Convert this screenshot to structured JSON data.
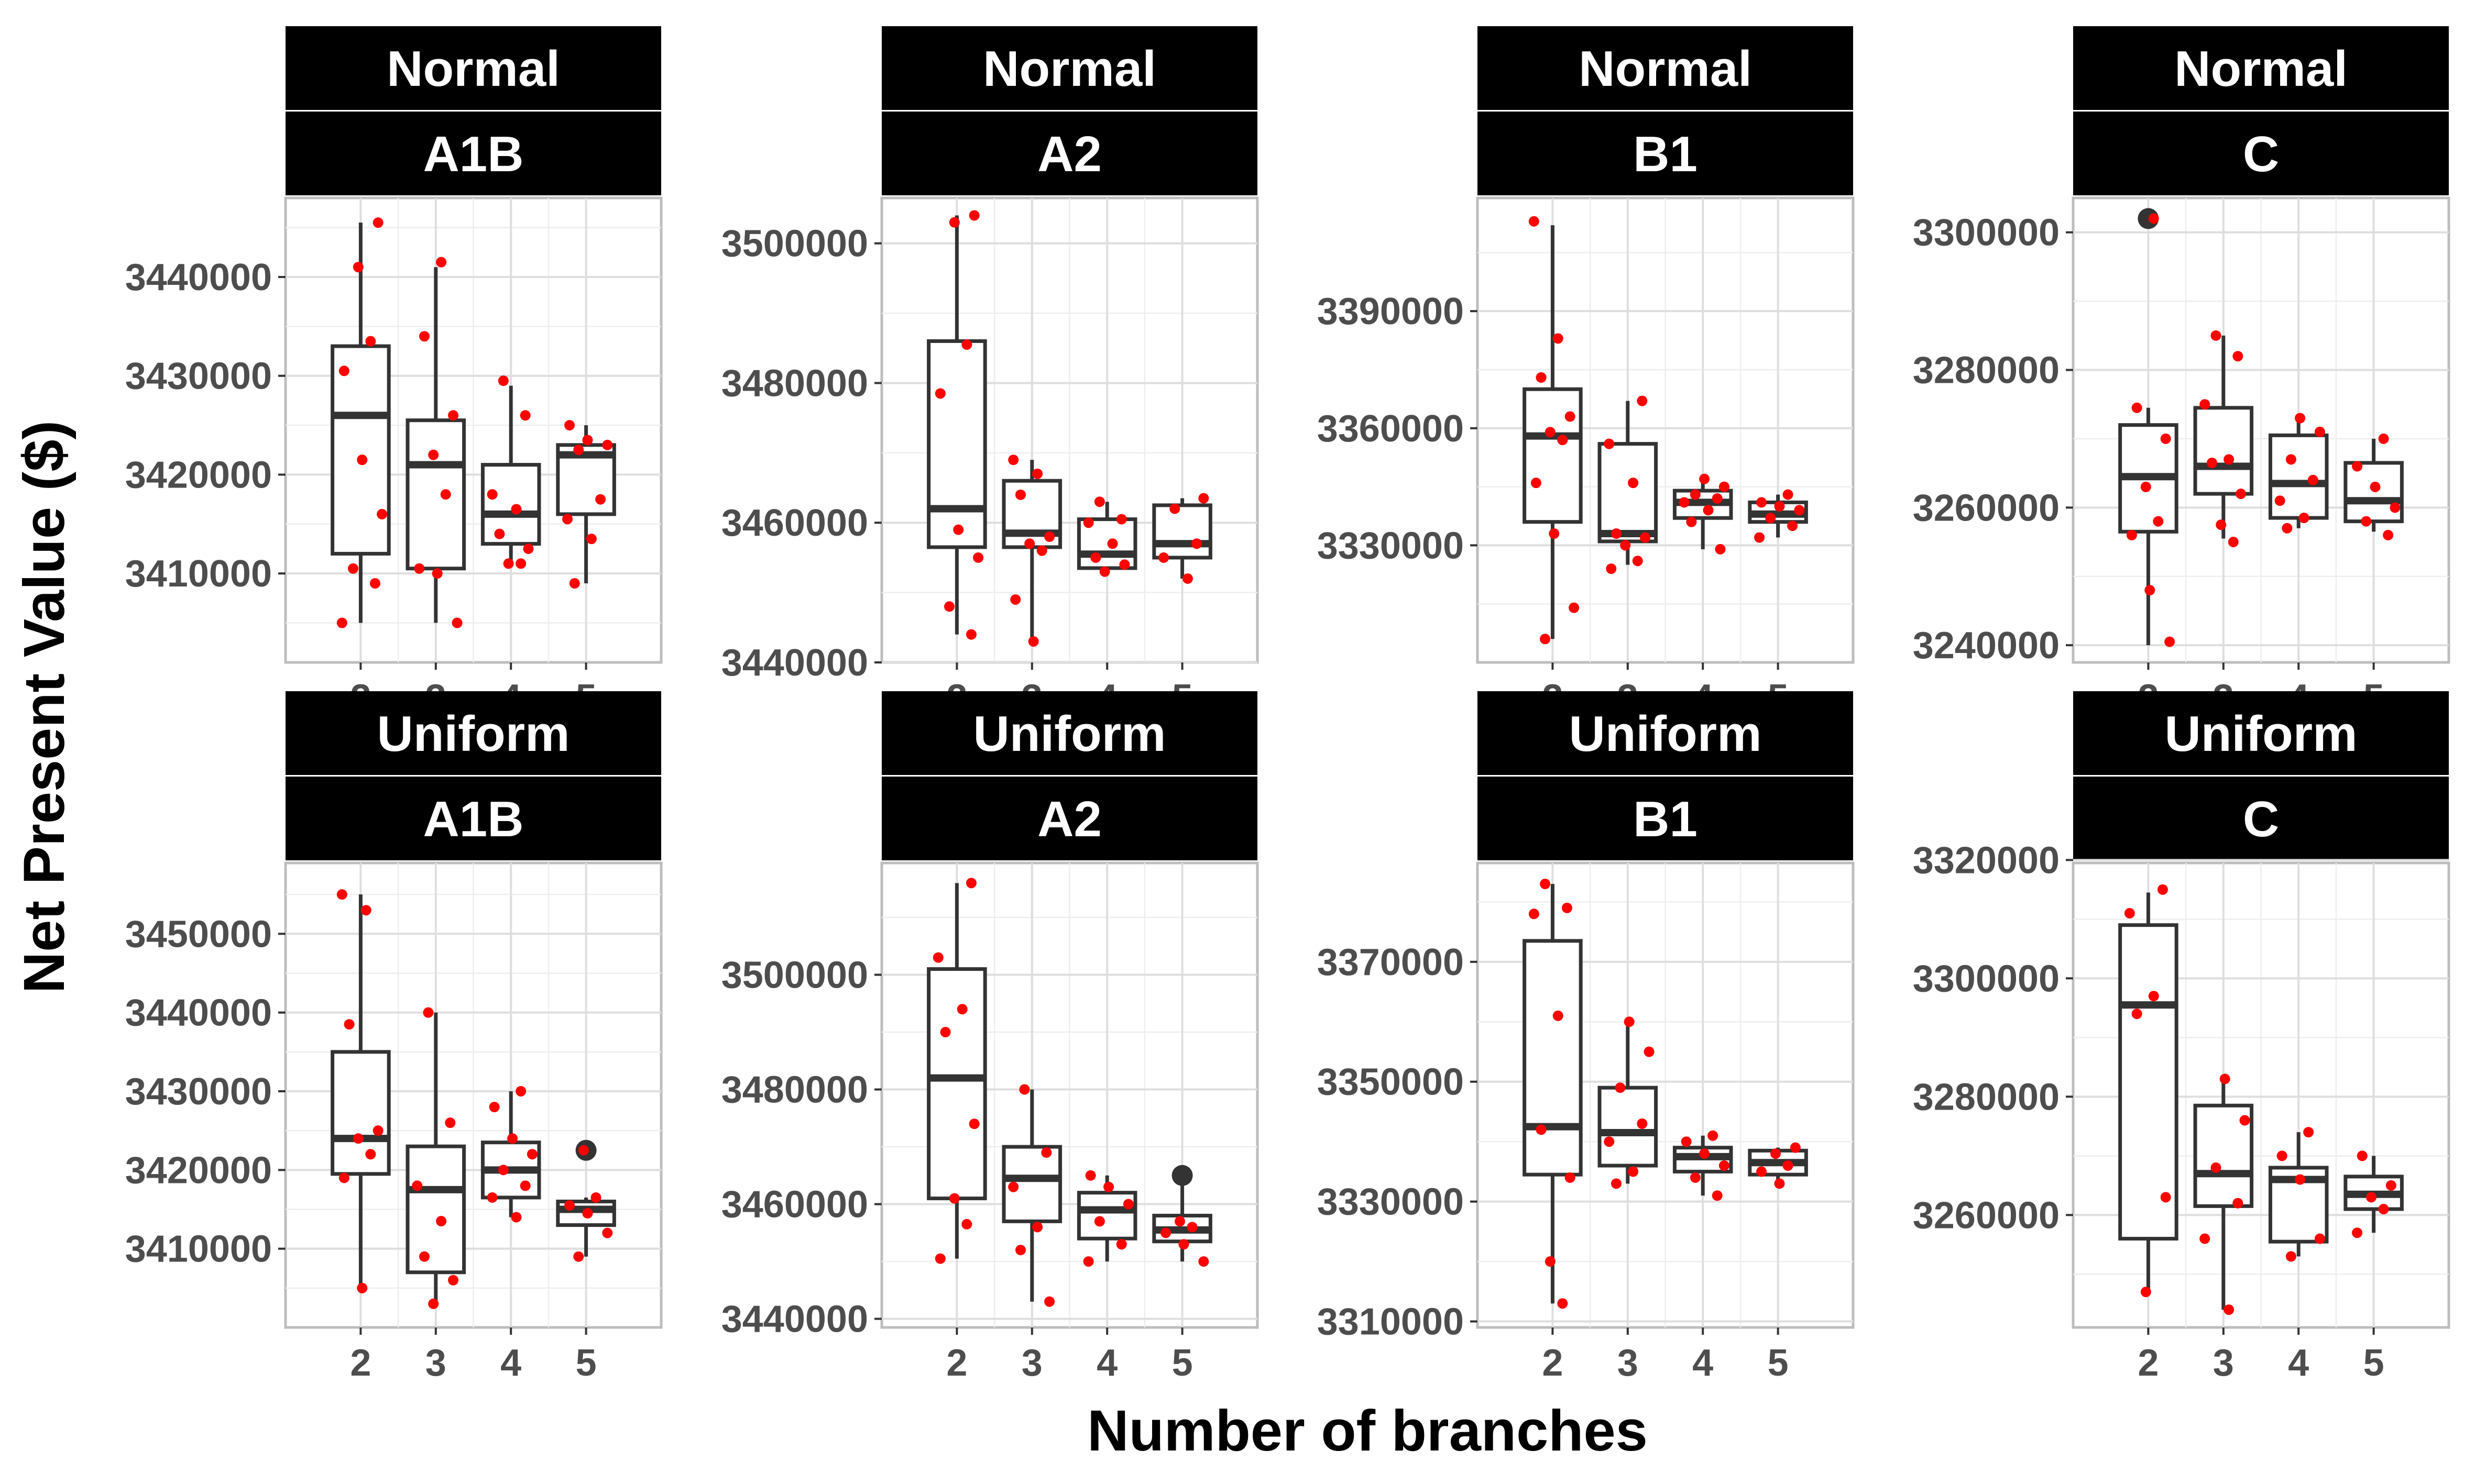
{
  "chart_data": {
    "type": "boxplot",
    "xlabel": "Number of branches",
    "ylabel": "Net Present Value ($)",
    "categories": [
      "2",
      "3",
      "4",
      "5"
    ],
    "jitter_color": "#ff0000",
    "box_color": "#333333",
    "strip_color": "#000000",
    "panels": [
      {
        "id": "normal-a1b",
        "strip_top": "Normal",
        "strip_bottom": "A1B",
        "ylim": [
          3401000,
          3448000
        ],
        "yticks": [
          3410000,
          3420000,
          3430000,
          3440000
        ],
        "ytick_labels": [
          "3410000",
          "3420000",
          "3430000",
          "3440000"
        ],
        "boxes": [
          {
            "x": "2",
            "low": 3405000,
            "q1": 3412000,
            "median": 3426000,
            "q3": 3433000,
            "high": 3445500,
            "outliers": []
          },
          {
            "x": "3",
            "low": 3405000,
            "q1": 3410500,
            "median": 3421000,
            "q3": 3425500,
            "high": 3441000,
            "outliers": []
          },
          {
            "x": "4",
            "low": 3411000,
            "q1": 3413000,
            "median": 3416000,
            "q3": 3421000,
            "high": 3429000,
            "outliers": []
          },
          {
            "x": "5",
            "low": 3409000,
            "q1": 3416000,
            "median": 3422000,
            "q3": 3423000,
            "high": 3425000,
            "outliers": []
          }
        ],
        "points": [
          {
            "x": "2",
            "y": [
              3405000,
              3409000,
              3410500,
              3416000,
              3421500,
              3430500,
              3433500,
              3441000,
              3445500
            ]
          },
          {
            "x": "3",
            "y": [
              3405000,
              3410000,
              3410500,
              3418000,
              3422000,
              3426000,
              3434000,
              3441500
            ]
          },
          {
            "x": "4",
            "y": [
              3411000,
              3411000,
              3412500,
              3414000,
              3416500,
              3418000,
              3426000,
              3429500
            ]
          },
          {
            "x": "5",
            "y": [
              3409000,
              3413500,
              3415500,
              3417500,
              3422500,
              3423000,
              3423500,
              3425000
            ]
          }
        ]
      },
      {
        "id": "normal-a2",
        "strip_top": "Normal",
        "strip_bottom": "A2",
        "ylim": [
          3440000,
          3506500
        ],
        "yticks": [
          3440000,
          3460000,
          3480000,
          3500000
        ],
        "ytick_labels": [
          "3440000",
          "3460000",
          "3480000",
          "3500000"
        ],
        "boxes": [
          {
            "x": "2",
            "low": 3444000,
            "q1": 3456500,
            "median": 3462000,
            "q3": 3486000,
            "high": 3504000,
            "outliers": []
          },
          {
            "x": "3",
            "low": 3443000,
            "q1": 3456500,
            "median": 3458500,
            "q3": 3466000,
            "high": 3469000,
            "outliers": []
          },
          {
            "x": "4",
            "low": 3453000,
            "q1": 3453500,
            "median": 3455500,
            "q3": 3460500,
            "high": 3463000,
            "outliers": []
          },
          {
            "x": "5",
            "low": 3452000,
            "q1": 3455000,
            "median": 3457000,
            "q3": 3462500,
            "high": 3463500,
            "outliers": []
          }
        ],
        "points": [
          {
            "x": "2",
            "y": [
              3444000,
              3448000,
              3455000,
              3459000,
              3478500,
              3485500,
              3503000,
              3504000
            ]
          },
          {
            "x": "3",
            "y": [
              3443000,
              3449000,
              3456000,
              3457000,
              3458000,
              3464000,
              3467000,
              3469000
            ]
          },
          {
            "x": "4",
            "y": [
              3453000,
              3454000,
              3455000,
              3457000,
              3460000,
              3460500,
              3463000
            ]
          },
          {
            "x": "5",
            "y": [
              3452000,
              3455000,
              3457000,
              3462000,
              3463500
            ]
          }
        ]
      },
      {
        "id": "normal-b1",
        "strip_top": "Normal",
        "strip_bottom": "B1",
        "ylim": [
          3300000,
          3419000
        ],
        "yticks": [
          3330000,
          3360000,
          3390000
        ],
        "ytick_labels": [
          "3330000",
          "3360000",
          "3390000"
        ],
        "boxes": [
          {
            "x": "2",
            "low": 3306000,
            "q1": 3336000,
            "median": 3358000,
            "q3": 3370000,
            "high": 3412000,
            "outliers": []
          },
          {
            "x": "3",
            "low": 3325000,
            "q1": 3331000,
            "median": 3333000,
            "q3": 3356000,
            "high": 3367000,
            "outliers": []
          },
          {
            "x": "4",
            "low": 3329000,
            "q1": 3337000,
            "median": 3341000,
            "q3": 3344000,
            "high": 3347000,
            "outliers": []
          },
          {
            "x": "5",
            "low": 3332000,
            "q1": 3336000,
            "median": 3338000,
            "q3": 3341000,
            "high": 3343000,
            "outliers": []
          }
        ],
        "points": [
          {
            "x": "2",
            "y": [
              3306000,
              3314000,
              3333000,
              3346000,
              3357000,
              3359000,
              3363000,
              3373000,
              3383000,
              3413000
            ]
          },
          {
            "x": "3",
            "y": [
              3324000,
              3326000,
              3330000,
              3332000,
              3333000,
              3346000,
              3356000,
              3367000
            ]
          },
          {
            "x": "4",
            "y": [
              3329000,
              3336000,
              3339000,
              3341000,
              3342000,
              3343000,
              3345000,
              3347000
            ]
          },
          {
            "x": "5",
            "y": [
              3332000,
              3335000,
              3337000,
              3339000,
              3340000,
              3341000,
              3343000
            ]
          }
        ]
      },
      {
        "id": "normal-c",
        "strip_top": "Normal",
        "strip_bottom": "C",
        "ylim": [
          3237500,
          3305000
        ],
        "yticks": [
          3240000,
          3260000,
          3280000,
          3300000
        ],
        "ytick_labels": [
          "3240000",
          "3260000",
          "3280000",
          "3300000"
        ],
        "boxes": [
          {
            "x": "2",
            "low": 3240000,
            "q1": 3256500,
            "median": 3264500,
            "q3": 3272000,
            "high": 3274500,
            "outliers": [
              3302000
            ]
          },
          {
            "x": "3",
            "low": 3255500,
            "q1": 3262000,
            "median": 3266000,
            "q3": 3274500,
            "high": 3285000,
            "outliers": []
          },
          {
            "x": "4",
            "low": 3257000,
            "q1": 3258500,
            "median": 3263500,
            "q3": 3270500,
            "high": 3273000,
            "outliers": []
          },
          {
            "x": "5",
            "low": 3256500,
            "q1": 3258000,
            "median": 3261000,
            "q3": 3266500,
            "high": 3270000,
            "outliers": []
          }
        ],
        "points": [
          {
            "x": "2",
            "y": [
              3240500,
              3248000,
              3256000,
              3258000,
              3263000,
              3270000,
              3274500,
              3302000
            ]
          },
          {
            "x": "3",
            "y": [
              3255000,
              3257500,
              3262000,
              3266500,
              3267000,
              3275000,
              3282000,
              3285000
            ]
          },
          {
            "x": "4",
            "y": [
              3257000,
              3258500,
              3261000,
              3264000,
              3267000,
              3271000,
              3273000
            ]
          },
          {
            "x": "5",
            "y": [
              3256000,
              3258000,
              3260000,
              3263000,
              3266000,
              3270000
            ]
          }
        ]
      },
      {
        "id": "uniform-a1b",
        "strip_top": "Uniform",
        "strip_bottom": "A1B",
        "ylim": [
          3400000,
          3459000
        ],
        "yticks": [
          3410000,
          3420000,
          3430000,
          3440000,
          3450000
        ],
        "ytick_labels": [
          "3410000",
          "3420000",
          "3430000",
          "3440000",
          "3450000"
        ],
        "boxes": [
          {
            "x": "2",
            "low": 3405000,
            "q1": 3419500,
            "median": 3424000,
            "q3": 3435000,
            "high": 3455000,
            "outliers": []
          },
          {
            "x": "3",
            "low": 3403000,
            "q1": 3407000,
            "median": 3417500,
            "q3": 3423000,
            "high": 3440000,
            "outliers": []
          },
          {
            "x": "4",
            "low": 3414000,
            "q1": 3416500,
            "median": 3420000,
            "q3": 3423500,
            "high": 3430000,
            "outliers": []
          },
          {
            "x": "5",
            "low": 3409000,
            "q1": 3413000,
            "median": 3415000,
            "q3": 3416000,
            "high": 3416500,
            "outliers": [
              3422500
            ]
          }
        ],
        "points": [
          {
            "x": "2",
            "y": [
              3405000,
              3419000,
              3422000,
              3424000,
              3425000,
              3438500,
              3453000,
              3455000
            ]
          },
          {
            "x": "3",
            "y": [
              3403000,
              3406000,
              3409000,
              3413500,
              3418000,
              3426000,
              3440000
            ]
          },
          {
            "x": "4",
            "y": [
              3414000,
              3416500,
              3418000,
              3420000,
              3422000,
              3424000,
              3428000,
              3430000
            ]
          },
          {
            "x": "5",
            "y": [
              3409000,
              3412000,
              3414500,
              3415500,
              3416500,
              3422500
            ]
          }
        ]
      },
      {
        "id": "uniform-a2",
        "strip_top": "Uniform",
        "strip_bottom": "A2",
        "ylim": [
          3438500,
          3519500
        ],
        "yticks": [
          3440000,
          3460000,
          3480000,
          3500000
        ],
        "ytick_labels": [
          "3440000",
          "3460000",
          "3480000",
          "3500000"
        ],
        "boxes": [
          {
            "x": "2",
            "low": 3450500,
            "q1": 3461000,
            "median": 3482000,
            "q3": 3501000,
            "high": 3516000,
            "outliers": []
          },
          {
            "x": "3",
            "low": 3443000,
            "q1": 3457000,
            "median": 3464500,
            "q3": 3470000,
            "high": 3480000,
            "outliers": []
          },
          {
            "x": "4",
            "low": 3450000,
            "q1": 3454000,
            "median": 3459000,
            "q3": 3462000,
            "high": 3465000,
            "outliers": []
          },
          {
            "x": "5",
            "low": 3450000,
            "q1": 3453500,
            "median": 3455500,
            "q3": 3458000,
            "high": 3465000,
            "outliers": [
              3465000
            ]
          }
        ],
        "points": [
          {
            "x": "2",
            "y": [
              3450500,
              3456500,
              3461000,
              3474000,
              3490000,
              3494000,
              3503000,
              3516000
            ]
          },
          {
            "x": "3",
            "y": [
              3443000,
              3452000,
              3456000,
              3463000,
              3469000,
              3480000
            ]
          },
          {
            "x": "4",
            "y": [
              3450000,
              3453000,
              3457000,
              3460000,
              3463000,
              3465000
            ]
          },
          {
            "x": "5",
            "y": [
              3450000,
              3453000,
              3455000,
              3456000,
              3457000
            ]
          }
        ]
      },
      {
        "id": "uniform-b1",
        "strip_top": "Uniform",
        "strip_bottom": "B1",
        "ylim": [
          3309000,
          3386500
        ],
        "yticks": [
          3310000,
          3330000,
          3350000,
          3370000
        ],
        "ytick_labels": [
          "3310000",
          "3330000",
          "3350000",
          "3370000"
        ],
        "boxes": [
          {
            "x": "2",
            "low": 3313000,
            "q1": 3334500,
            "median": 3342500,
            "q3": 3373500,
            "high": 3383000,
            "outliers": []
          },
          {
            "x": "3",
            "low": 3333000,
            "q1": 3336000,
            "median": 3341500,
            "q3": 3349000,
            "high": 3360000,
            "outliers": []
          },
          {
            "x": "4",
            "low": 3331000,
            "q1": 3335000,
            "median": 3337500,
            "q3": 3339000,
            "high": 3341000,
            "outliers": []
          },
          {
            "x": "5",
            "low": 3333000,
            "q1": 3334500,
            "median": 3336500,
            "q3": 3338500,
            "high": 3339000,
            "outliers": []
          }
        ],
        "points": [
          {
            "x": "2",
            "y": [
              3313000,
              3320000,
              3334000,
              3342000,
              3361000,
              3378000,
              3379000,
              3383000
            ]
          },
          {
            "x": "3",
            "y": [
              3333000,
              3335000,
              3340000,
              3343000,
              3349000,
              3355000,
              3360000
            ]
          },
          {
            "x": "4",
            "y": [
              3331000,
              3334000,
              3336000,
              3338000,
              3340000,
              3341000
            ]
          },
          {
            "x": "5",
            "y": [
              3333000,
              3335000,
              3336000,
              3338000,
              3339000
            ]
          }
        ]
      },
      {
        "id": "uniform-c",
        "strip_top": "Uniform",
        "strip_bottom": "C",
        "ylim": [
          3241000,
          3319500
        ],
        "yticks": [
          3260000,
          3280000,
          3300000,
          3320000
        ],
        "ytick_labels": [
          "3260000",
          "3280000",
          "3300000",
          "3320000"
        ],
        "boxes": [
          {
            "x": "2",
            "low": 3247000,
            "q1": 3256000,
            "median": 3295500,
            "q3": 3309000,
            "high": 3314500,
            "outliers": []
          },
          {
            "x": "3",
            "low": 3244000,
            "q1": 3261500,
            "median": 3267000,
            "q3": 3278500,
            "high": 3283000,
            "outliers": []
          },
          {
            "x": "4",
            "low": 3253000,
            "q1": 3255500,
            "median": 3266000,
            "q3": 3268000,
            "high": 3274000,
            "outliers": []
          },
          {
            "x": "5",
            "low": 3257000,
            "q1": 3261000,
            "median": 3263500,
            "q3": 3266500,
            "high": 3270000,
            "outliers": []
          }
        ],
        "points": [
          {
            "x": "2",
            "y": [
              3247000,
              3263000,
              3294000,
              3297000,
              3311000,
              3315000
            ]
          },
          {
            "x": "3",
            "y": [
              3244000,
              3256000,
              3262000,
              3268000,
              3276000,
              3283000
            ]
          },
          {
            "x": "4",
            "y": [
              3253000,
              3256000,
              3266000,
              3270000,
              3274000
            ]
          },
          {
            "x": "5",
            "y": [
              3257000,
              3261000,
              3263000,
              3265000,
              3270000
            ]
          }
        ]
      }
    ]
  }
}
